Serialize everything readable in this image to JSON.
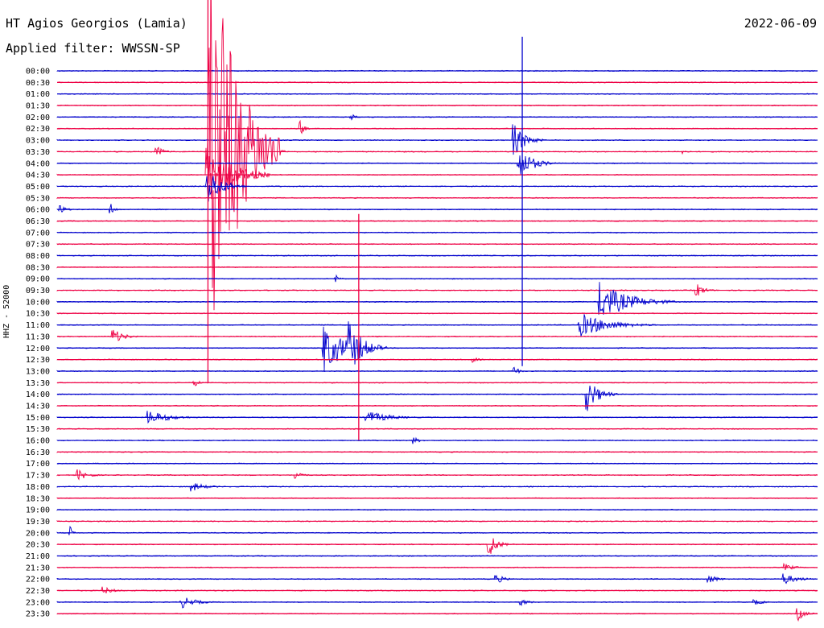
{
  "header": {
    "station": "HT Agios Georgios (Lamia)",
    "date": "2022-06-09",
    "filter": "Applied filter: WWSSN-SP",
    "channel": "HHZ - 52000"
  },
  "colors": {
    "even_trace": "#0000cc",
    "odd_trace": "#ee0044",
    "background": "#ffffff"
  },
  "chart_data": {
    "type": "line",
    "title": "HT Agios Georgios (Lamia)",
    "subtitle": "Applied filter: WWSSN-SP",
    "ylabel": "HHZ - 52000",
    "xlabel": "",
    "grid": false,
    "legend": "none",
    "x_unit": "minutes into row",
    "xlim": [
      0,
      30
    ],
    "tick_labels": [
      "00:00",
      "00:30",
      "01:00",
      "01:30",
      "02:00",
      "02:30",
      "03:00",
      "03:30",
      "04:00",
      "04:30",
      "05:00",
      "05:30",
      "06:00",
      "06:30",
      "07:00",
      "07:30",
      "08:00",
      "08:30",
      "09:00",
      "09:30",
      "10:00",
      "10:30",
      "11:00",
      "11:30",
      "12:00",
      "12:30",
      "13:00",
      "13:30",
      "14:00",
      "14:30",
      "15:00",
      "15:30",
      "16:00",
      "16:30",
      "17:00",
      "17:30",
      "18:00",
      "18:30",
      "19:00",
      "19:30",
      "20:00",
      "20:30",
      "21:00",
      "21:30",
      "22:00",
      "22:30",
      "23:00",
      "23:30"
    ],
    "events": [
      {
        "row": "02:00",
        "t": 11.6,
        "amp": 4,
        "dur": 0.6
      },
      {
        "row": "02:30",
        "t": 9.6,
        "amp": 10,
        "dur": 0.4
      },
      {
        "row": "03:00",
        "t": 18.0,
        "amp": 22,
        "dur": 1.2
      },
      {
        "row": "03:30",
        "t": 3.9,
        "amp": 8,
        "dur": 0.8
      },
      {
        "row": "03:30",
        "t": 6.0,
        "amp": 300,
        "dur": 2.8
      },
      {
        "row": "03:30",
        "t": 6.8,
        "amp": 45,
        "dur": 2.2
      },
      {
        "row": "03:30",
        "t": 24.7,
        "amp": 4,
        "dur": 0.4
      },
      {
        "row": "04:00",
        "t": 18.2,
        "amp": 20,
        "dur": 1.5
      },
      {
        "row": "04:30",
        "t": 5.9,
        "amp": 40,
        "dur": 2.5
      },
      {
        "row": "05:00",
        "t": 5.9,
        "amp": 25,
        "dur": 1.5
      },
      {
        "row": "06:00",
        "t": 0.1,
        "amp": 7,
        "dur": 0.6
      },
      {
        "row": "06:00",
        "t": 2.1,
        "amp": 7,
        "dur": 0.5
      },
      {
        "row": "09:00",
        "t": 11.0,
        "amp": 5,
        "dur": 0.5
      },
      {
        "row": "09:30",
        "t": 25.2,
        "amp": 10,
        "dur": 0.8
      },
      {
        "row": "10:00",
        "t": 21.4,
        "amp": 25,
        "dur": 3.0
      },
      {
        "row": "11:00",
        "t": 20.6,
        "amp": 16,
        "dur": 3.0
      },
      {
        "row": "11:30",
        "t": 2.2,
        "amp": 10,
        "dur": 1.1
      },
      {
        "row": "12:00",
        "t": 10.5,
        "amp": 30,
        "dur": 2.5
      },
      {
        "row": "12:00",
        "t": 11.5,
        "amp": 35,
        "dur": 1.5
      },
      {
        "row": "12:30",
        "t": 16.4,
        "amp": 4,
        "dur": 0.6
      },
      {
        "row": "13:00",
        "t": 18.0,
        "amp": 8,
        "dur": 0.5
      },
      {
        "row": "13:30",
        "t": 5.4,
        "amp": 6,
        "dur": 0.5
      },
      {
        "row": "14:00",
        "t": 20.9,
        "amp": 22,
        "dur": 1.2
      },
      {
        "row": "15:00",
        "t": 3.6,
        "amp": 9,
        "dur": 2.2
      },
      {
        "row": "15:00",
        "t": 12.2,
        "amp": 9,
        "dur": 2.2
      },
      {
        "row": "16:00",
        "t": 14.0,
        "amp": 5,
        "dur": 0.8
      },
      {
        "row": "17:30",
        "t": 0.8,
        "amp": 7,
        "dur": 1.2
      },
      {
        "row": "17:30",
        "t": 9.4,
        "amp": 6,
        "dur": 0.8
      },
      {
        "row": "18:00",
        "t": 5.3,
        "amp": 6,
        "dur": 1.5
      },
      {
        "row": "20:00",
        "t": 0.5,
        "amp": 8,
        "dur": 0.3
      },
      {
        "row": "20:30",
        "t": 17.0,
        "amp": 20,
        "dur": 0.8
      },
      {
        "row": "21:30",
        "t": 28.7,
        "amp": 5,
        "dur": 1.0
      },
      {
        "row": "22:00",
        "t": 17.3,
        "amp": 6,
        "dur": 1.0
      },
      {
        "row": "22:00",
        "t": 25.7,
        "amp": 6,
        "dur": 1.0
      },
      {
        "row": "22:00",
        "t": 28.6,
        "amp": 8,
        "dur": 1.5
      },
      {
        "row": "22:30",
        "t": 1.8,
        "amp": 5,
        "dur": 1.2
      },
      {
        "row": "23:00",
        "t": 4.9,
        "amp": 8,
        "dur": 1.5
      },
      {
        "row": "23:00",
        "t": 18.3,
        "amp": 5,
        "dur": 0.8
      },
      {
        "row": "23:00",
        "t": 27.5,
        "amp": 4,
        "dur": 1.0
      },
      {
        "row": "23:30",
        "t": 29.2,
        "amp": 9,
        "dur": 0.8
      }
    ],
    "spikes": [
      {
        "row": "13:30",
        "t": 5.95,
        "span_up": 478,
        "span_down": 0
      },
      {
        "row": "04:00",
        "t": 18.35,
        "span_up": 157,
        "span_down": 252
      },
      {
        "row": "15:30",
        "t": 11.9,
        "span_up": 267,
        "span_down": 14
      }
    ]
  }
}
